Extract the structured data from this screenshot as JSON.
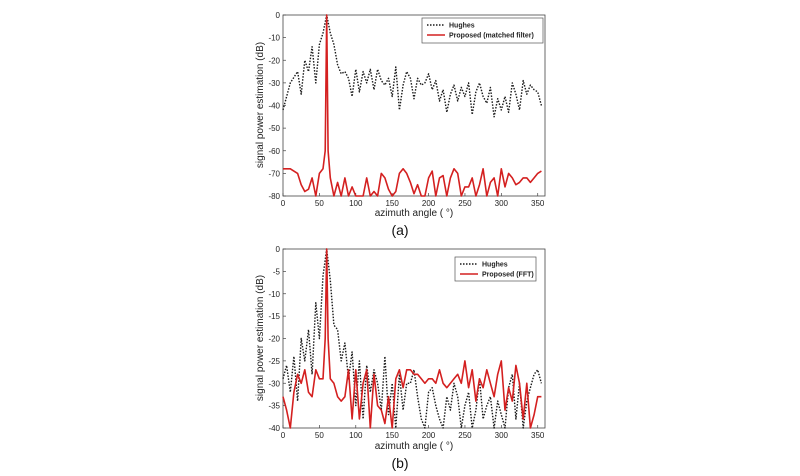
{
  "colors": {
    "hughes": "#1a1a1a",
    "proposed": "#d42020",
    "axis": "#444444"
  },
  "chart_data": [
    {
      "type": "line",
      "caption": "(a)",
      "xlabel": "azimuth angle ( °)",
      "ylabel": "signal power estimation (dB)",
      "xlim": [
        0,
        360
      ],
      "ylim": [
        -80,
        0
      ],
      "xticks": [
        0,
        50,
        100,
        150,
        200,
        250,
        300,
        350
      ],
      "yticks": [
        0,
        -10,
        -20,
        -30,
        -40,
        -50,
        -60,
        -70,
        -80
      ],
      "legend_position": "top-right",
      "series": [
        {
          "name": "Hughes",
          "style": "dotted",
          "x": [
            0,
            10,
            20,
            25,
            30,
            35,
            40,
            45,
            50,
            55,
            60,
            65,
            70,
            75,
            80,
            85,
            90,
            95,
            100,
            105,
            110,
            115,
            120,
            125,
            130,
            135,
            140,
            145,
            150,
            155,
            160,
            165,
            170,
            175,
            180,
            185,
            190,
            195,
            200,
            205,
            210,
            215,
            220,
            225,
            230,
            235,
            240,
            245,
            250,
            255,
            260,
            265,
            270,
            275,
            280,
            285,
            290,
            295,
            300,
            305,
            310,
            315,
            320,
            325,
            330,
            335,
            340,
            345,
            350,
            355
          ],
          "y": [
            -42,
            -30,
            -25,
            -35,
            -20,
            -25,
            -14,
            -30,
            -13,
            -8,
            0,
            -8,
            -13,
            -22,
            -26,
            -25,
            -28,
            -36,
            -24,
            -34,
            -25,
            -30,
            -24,
            -33,
            -24,
            -29,
            -31,
            -28,
            -36,
            -23,
            -42,
            -31,
            -25,
            -28,
            -37,
            -28,
            -31,
            -30,
            -26,
            -33,
            -29,
            -38,
            -33,
            -43,
            -35,
            -31,
            -38,
            -32,
            -36,
            -30,
            -44,
            -34,
            -30,
            -36,
            -39,
            -32,
            -45,
            -37,
            -42,
            -36,
            -43,
            -30,
            -35,
            -42,
            -29,
            -35,
            -31,
            -33,
            -34,
            -40
          ]
        },
        {
          "name": "Proposed (matched filter)",
          "style": "solid",
          "x": [
            0,
            10,
            20,
            25,
            30,
            35,
            40,
            45,
            50,
            55,
            58,
            60,
            62,
            65,
            70,
            75,
            80,
            85,
            90,
            95,
            100,
            105,
            110,
            115,
            120,
            125,
            130,
            135,
            140,
            145,
            150,
            155,
            160,
            165,
            170,
            175,
            180,
            185,
            190,
            195,
            200,
            205,
            210,
            215,
            220,
            225,
            230,
            235,
            240,
            245,
            250,
            255,
            260,
            265,
            270,
            275,
            280,
            285,
            290,
            295,
            300,
            305,
            310,
            315,
            320,
            325,
            330,
            335,
            340,
            345,
            350,
            355
          ],
          "y": [
            -68,
            -68,
            -70,
            -75,
            -78,
            -77,
            -72,
            -80,
            -70,
            -68,
            -60,
            0,
            -60,
            -72,
            -80,
            -74,
            -80,
            -72,
            -80,
            -76,
            -80,
            -80,
            -80,
            -72,
            -80,
            -78,
            -80,
            -70,
            -72,
            -77,
            -80,
            -78,
            -70,
            -68,
            -70,
            -74,
            -79,
            -75,
            -80,
            -80,
            -72,
            -69,
            -80,
            -72,
            -71,
            -80,
            -72,
            -68,
            -70,
            -80,
            -76,
            -76,
            -72,
            -80,
            -75,
            -68,
            -80,
            -74,
            -72,
            -80,
            -68,
            -76,
            -70,
            -72,
            -75,
            -74,
            -72,
            -72,
            -74,
            -72,
            -70,
            -69
          ]
        }
      ]
    },
    {
      "type": "line",
      "caption": "(b)",
      "xlabel": "azimuth angle ( °)",
      "ylabel": "signal power estimation (dB)",
      "xlim": [
        0,
        360
      ],
      "ylim": [
        -40,
        0
      ],
      "xticks": [
        0,
        50,
        100,
        150,
        200,
        250,
        300,
        350
      ],
      "yticks": [
        0,
        -5,
        -10,
        -15,
        -20,
        -25,
        -30,
        -35,
        -40
      ],
      "legend_position": "top-right",
      "series": [
        {
          "name": "Hughes",
          "style": "dotted",
          "x": [
            0,
            5,
            10,
            15,
            20,
            25,
            30,
            35,
            40,
            45,
            50,
            55,
            60,
            65,
            70,
            75,
            80,
            85,
            90,
            95,
            100,
            105,
            110,
            115,
            120,
            125,
            130,
            135,
            140,
            145,
            150,
            155,
            160,
            165,
            170,
            175,
            180,
            185,
            190,
            195,
            200,
            205,
            210,
            215,
            220,
            225,
            230,
            235,
            240,
            245,
            250,
            255,
            260,
            265,
            270,
            275,
            280,
            285,
            290,
            295,
            300,
            305,
            310,
            315,
            320,
            325,
            330,
            335,
            340,
            345,
            350,
            355
          ],
          "y": [
            -29,
            -26,
            -32,
            -24,
            -34,
            -20,
            -25,
            -18,
            -28,
            -12,
            -20,
            -6,
            0,
            -7,
            -17,
            -18,
            -25,
            -21,
            -29,
            -23,
            -35,
            -25,
            -38,
            -26,
            -32,
            -27,
            -30,
            -36,
            -24,
            -37,
            -30,
            -40,
            -28,
            -36,
            -30,
            -30,
            -27,
            -33,
            -38,
            -40,
            -32,
            -31,
            -35,
            -38,
            -40,
            -33,
            -36,
            -30,
            -33,
            -40,
            -35,
            -32,
            -40,
            -36,
            -29,
            -38,
            -35,
            -33,
            -40,
            -34,
            -37,
            -40,
            -31,
            -28,
            -38,
            -30,
            -40,
            -34,
            -31,
            -28,
            -27,
            -30
          ]
        },
        {
          "name": "Proposed (FFT)",
          "style": "solid",
          "x": [
            0,
            5,
            10,
            15,
            20,
            25,
            30,
            35,
            40,
            45,
            50,
            55,
            58,
            60,
            62,
            65,
            70,
            75,
            80,
            85,
            90,
            95,
            100,
            105,
            110,
            115,
            120,
            125,
            130,
            135,
            140,
            145,
            150,
            155,
            160,
            165,
            170,
            175,
            180,
            185,
            190,
            195,
            200,
            205,
            210,
            215,
            220,
            225,
            230,
            235,
            240,
            245,
            250,
            255,
            260,
            265,
            270,
            275,
            280,
            285,
            290,
            295,
            300,
            305,
            310,
            315,
            320,
            325,
            330,
            335,
            340,
            345,
            350,
            355
          ],
          "y": [
            -33,
            -36,
            -40,
            -32,
            -28,
            -30,
            -27,
            -32,
            -33,
            -27,
            -29,
            -29,
            -20,
            0,
            -20,
            -29,
            -30,
            -33,
            -34,
            -33,
            -27,
            -38,
            -27,
            -38,
            -30,
            -27,
            -40,
            -28,
            -35,
            -36,
            -39,
            -33,
            -40,
            -29,
            -27,
            -31,
            -27,
            -27,
            -28,
            -28,
            -29,
            -30,
            -29,
            -29,
            -30,
            -27,
            -30,
            -31,
            -30,
            -29,
            -28,
            -30,
            -25,
            -31,
            -27,
            -34,
            -29,
            -31,
            -27,
            -30,
            -33,
            -28,
            -25,
            -36,
            -31,
            -34,
            -26,
            -30,
            -38,
            -30,
            -40,
            -37,
            -33,
            -33
          ]
        }
      ]
    }
  ]
}
